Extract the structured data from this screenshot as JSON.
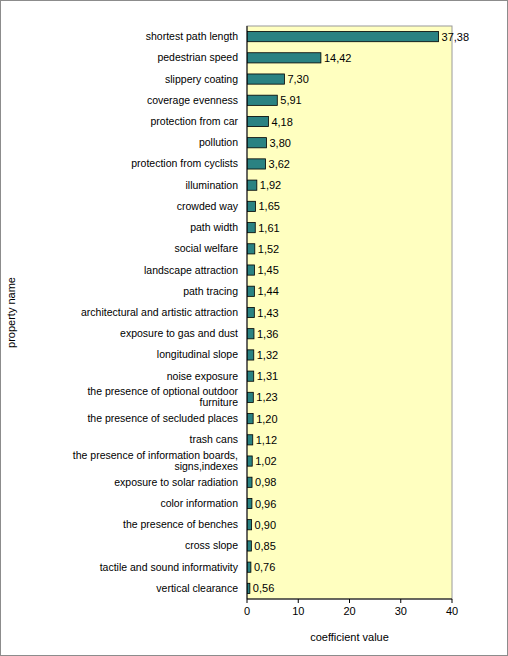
{
  "chart_data": {
    "type": "bar",
    "orientation": "horizontal",
    "x_label": "coefficient value",
    "y_label": "property name",
    "categories": [
      "shortest path length",
      "pedestrian speed",
      "slippery coating",
      "coverage evenness",
      "protection from car",
      "pollution",
      "protection from cyclists",
      "illumination",
      "crowded way",
      "path width",
      "social welfare",
      "landscape attraction",
      "path tracing",
      "architectural and artistic attraction",
      "exposure to gas and dust",
      "longitudinal slope",
      "noise exposure",
      "the presence of optional outdoor furniture",
      "the presence of secluded places",
      "trash cans",
      "the presence of information boards, signs,indexes",
      "exposure to solar radiation",
      "color information",
      "the presence of benches",
      "cross slope",
      "tactile and sound informativity",
      "vertical clearance"
    ],
    "values": [
      37.38,
      14.42,
      7.3,
      5.91,
      4.18,
      3.8,
      3.62,
      1.92,
      1.65,
      1.61,
      1.52,
      1.45,
      1.44,
      1.43,
      1.36,
      1.32,
      1.31,
      1.23,
      1.2,
      1.12,
      1.02,
      0.98,
      0.96,
      0.9,
      0.85,
      0.76,
      0.56
    ],
    "value_labels": [
      "37,38",
      "14,42",
      "7,30",
      "5,91",
      "4,18",
      "3,80",
      "3,62",
      "1,92",
      "1,65",
      "1,61",
      "1,52",
      "1,45",
      "1,44",
      "1,43",
      "1,36",
      "1,32",
      "1,31",
      "1,23",
      "1,20",
      "1,12",
      "1,02",
      "0,98",
      "0,96",
      "0,90",
      "0,85",
      "0,76",
      "0,56"
    ],
    "color": "#2a8282",
    "xlim": [
      0,
      40
    ],
    "xticks": [
      0,
      10,
      20,
      30,
      40
    ],
    "grid": false,
    "data_labels": true
  }
}
